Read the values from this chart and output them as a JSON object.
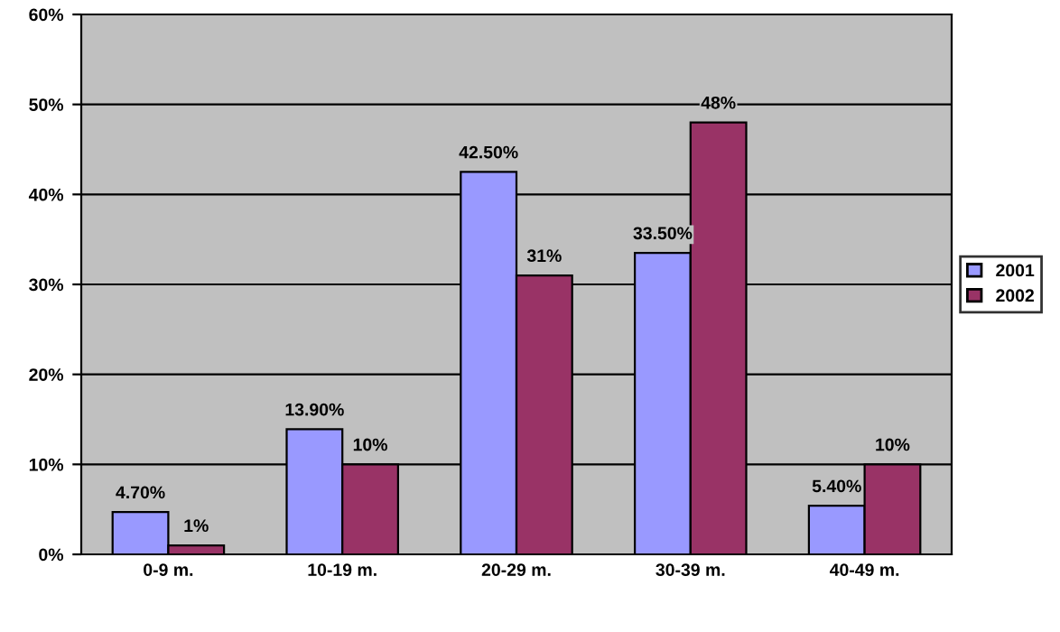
{
  "chart_data": {
    "type": "bar",
    "categories": [
      "0-9 m.",
      "10-19 m.",
      "20-29 m.",
      "30-39 m.",
      "40-49 m."
    ],
    "series": [
      {
        "name": "2001",
        "color": "#9999ff",
        "values": [
          4.7,
          13.9,
          42.5,
          33.5,
          5.4
        ],
        "value_labels": [
          "4.70%",
          "13.90%",
          "42.50%",
          "33.50%",
          "5.40%"
        ]
      },
      {
        "name": "2002",
        "color": "#993366",
        "values": [
          1,
          10,
          31,
          48,
          10
        ],
        "value_labels": [
          "1%",
          "10%",
          "31%",
          "48%",
          "10%"
        ]
      }
    ],
    "ylim": [
      0,
      60
    ],
    "yticks": [
      {
        "value": 0,
        "label": "0%"
      },
      {
        "value": 10,
        "label": "10%"
      },
      {
        "value": 20,
        "label": "20%"
      },
      {
        "value": 30,
        "label": "30%"
      },
      {
        "value": 40,
        "label": "40%"
      },
      {
        "value": 50,
        "label": "50%"
      },
      {
        "value": 60,
        "label": "60%"
      }
    ],
    "grid": "y",
    "legend": "right"
  }
}
